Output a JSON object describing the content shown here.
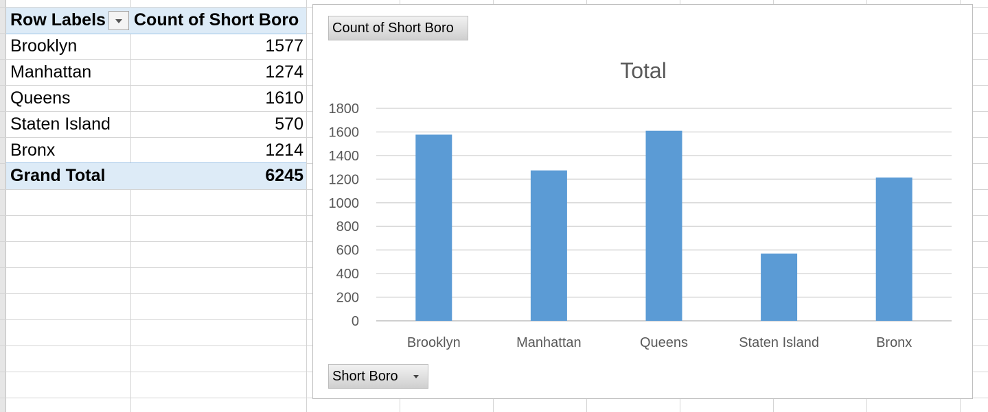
{
  "pivot": {
    "header": {
      "row_labels": "Row Labels",
      "value_header": "Count of Short Boro"
    },
    "rows": [
      {
        "label": "Brooklyn",
        "value": "1577"
      },
      {
        "label": "Manhattan",
        "value": "1274"
      },
      {
        "label": "Queens",
        "value": "1610"
      },
      {
        "label": "Staten Island",
        "value": "570"
      },
      {
        "label": "Bronx",
        "value": "1214"
      }
    ],
    "grand_total": {
      "label": "Grand Total",
      "value": "6245"
    }
  },
  "chart": {
    "field_button_top": "Count of Short Boro",
    "field_button_bottom": "Short Boro"
  },
  "chart_data": {
    "type": "bar",
    "title": "Total",
    "categories": [
      "Brooklyn",
      "Manhattan",
      "Queens",
      "Staten Island",
      "Bronx"
    ],
    "values": [
      1577,
      1274,
      1610,
      570,
      1214
    ],
    "ylim": [
      0,
      1800
    ],
    "yticks": [
      0,
      200,
      400,
      600,
      800,
      1000,
      1200,
      1400,
      1600,
      1800
    ],
    "grid": true,
    "legend": "none",
    "bar_color": "#5b9bd5"
  },
  "colors": {
    "pivot_header_fill": "#ddebf7",
    "bar": "#5b9bd5",
    "gridline": "#d9d9d9"
  }
}
